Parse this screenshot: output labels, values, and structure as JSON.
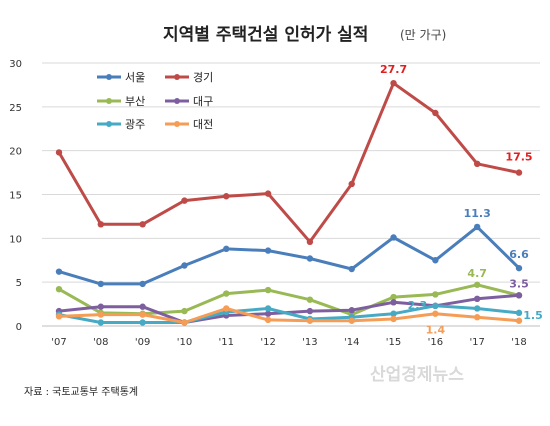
{
  "chart_data": {
    "type": "line",
    "title": "지역별 주택건설 인허가 실적",
    "unit": "(만 가구)",
    "categories": [
      "'07",
      "'08",
      "'09",
      "'10",
      "'11",
      "'12",
      "'13",
      "'14",
      "'15",
      "'16",
      "'17",
      "'18"
    ],
    "ylim": [
      0,
      30
    ],
    "yticks": [
      0,
      5,
      10,
      15,
      20,
      25,
      30
    ],
    "grid": true,
    "legend_position": "top-left",
    "series": [
      {
        "name": "서울",
        "color": "#4a7ebb",
        "values": [
          6.2,
          4.8,
          4.8,
          6.9,
          8.8,
          8.6,
          7.7,
          6.5,
          10.1,
          7.5,
          11.3,
          6.6
        ]
      },
      {
        "name": "경기",
        "color": "#be4b48",
        "values": [
          19.8,
          11.6,
          11.6,
          14.3,
          14.8,
          15.1,
          9.6,
          16.2,
          27.7,
          24.3,
          18.5,
          17.5
        ]
      },
      {
        "name": "부산",
        "color": "#98b954",
        "values": [
          4.2,
          1.5,
          1.4,
          1.7,
          3.7,
          4.1,
          3.0,
          1.3,
          3.3,
          3.6,
          4.7,
          3.5
        ]
      },
      {
        "name": "대구",
        "color": "#7d5fa0",
        "values": [
          1.7,
          2.2,
          2.2,
          0.4,
          1.2,
          1.4,
          1.7,
          1.8,
          2.7,
          2.3,
          3.1,
          3.5
        ]
      },
      {
        "name": "광주",
        "color": "#46aac5",
        "values": [
          1.3,
          0.4,
          0.4,
          0.4,
          1.6,
          2.0,
          0.8,
          1.0,
          1.4,
          2.3,
          2.0,
          1.5
        ]
      },
      {
        "name": "대전",
        "color": "#f59d56",
        "values": [
          1.1,
          1.3,
          1.3,
          0.4,
          2.0,
          0.7,
          0.6,
          0.6,
          0.8,
          1.4,
          1.0,
          0.6
        ]
      }
    ],
    "annotations": [
      {
        "text": "27.7",
        "series": 1,
        "index": 8,
        "color": "#e02020"
      },
      {
        "text": "17.5",
        "series": 1,
        "index": 11,
        "color": "#e02020"
      },
      {
        "text": "11.3",
        "series": 0,
        "index": 10,
        "color": "#4a7ebb"
      },
      {
        "text": "6.6",
        "series": 0,
        "index": 11,
        "color": "#4a7ebb"
      },
      {
        "text": "4.7",
        "series": 2,
        "index": 10,
        "color": "#98b954"
      },
      {
        "text": "3.5",
        "series": 3,
        "index": 11,
        "color": "#7d5fa0"
      },
      {
        "text": "2.3",
        "series": 4,
        "index": 9,
        "color": "#46aac5"
      },
      {
        "text": "1.5",
        "series": 4,
        "index": 11,
        "color": "#46aac5"
      },
      {
        "text": "1.4",
        "series": 5,
        "index": 9,
        "color": "#f59d56"
      }
    ]
  },
  "source": "자료 : 국토교통부 주택통계",
  "watermark": "산업경제뉴스"
}
